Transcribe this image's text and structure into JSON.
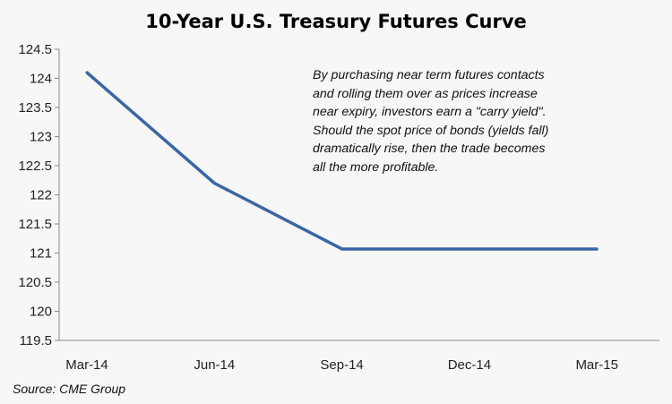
{
  "chart_data": {
    "type": "line",
    "title": "10-Year U.S. Treasury Futures Curve",
    "categories": [
      "Mar-14",
      "Jun-14",
      "Sep-14",
      "Dec-14",
      "Mar-15"
    ],
    "series": [
      {
        "values": [
          124.1,
          122.2,
          121.07,
          121.07,
          121.07
        ],
        "color": "#3a66a6"
      }
    ],
    "xlabel": "",
    "ylabel": "",
    "ylim": [
      119.5,
      124.5
    ],
    "yticks": [
      "119.5",
      "120",
      "120.5",
      "121",
      "121.5",
      "122",
      "122.5",
      "123",
      "123.5",
      "124",
      "124.5"
    ],
    "grid": false,
    "annotation": "By purchasing near term futures contacts and rolling them over as prices increase near expiry, investors earn a \"carry yield\". Should  the spot price of bonds (yields fall) dramatically rise, then the trade becomes all the more profitable.",
    "annotation_lines": [
      "By purchasing near term futures contacts",
      "and rolling them over as prices increase",
      "near expiry, investors earn a \"carry yield\".",
      "Should  the spot price of bonds (yields fall)",
      "dramatically rise, then the trade becomes",
      "all the more profitable."
    ],
    "source": "Source: CME Group"
  }
}
